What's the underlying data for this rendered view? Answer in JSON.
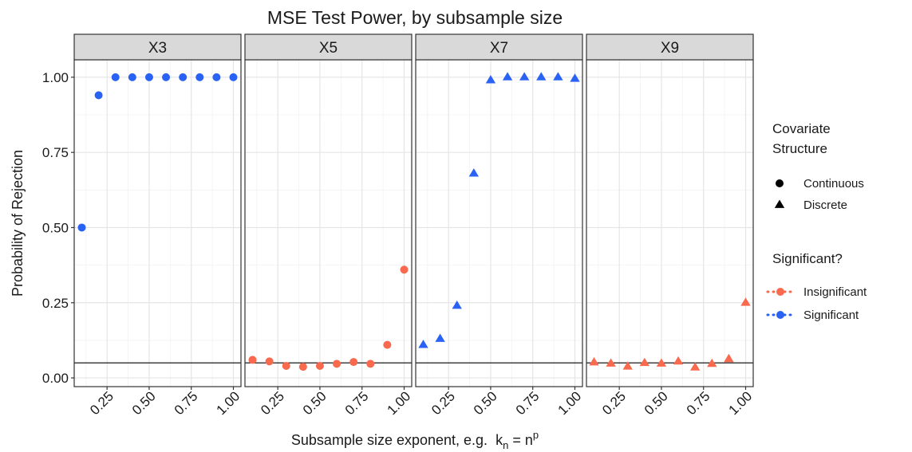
{
  "chart_data": {
    "type": "line",
    "title": "MSE Test Power, by subsample size",
    "x_label": [
      "Subsample size exponent, e.g.  k",
      "n",
      " = n",
      "p"
    ],
    "y_label": "Probability of Rejection",
    "x": [
      0.1,
      0.2,
      0.3,
      0.4,
      0.5,
      0.6,
      0.7,
      0.8,
      0.9,
      1.0
    ],
    "xlim": [
      0.055,
      1.045
    ],
    "ylim": [
      -0.029,
      1.058
    ],
    "xticks": [
      {
        "value": 0.25,
        "label": "0.25"
      },
      {
        "value": 0.5,
        "label": "0.50"
      },
      {
        "value": 0.75,
        "label": "0.75"
      },
      {
        "value": 1.0,
        "label": "1.00"
      }
    ],
    "yticks": [
      {
        "value": 0,
        "label": "0.00"
      },
      {
        "value": 0.25,
        "label": "0.25"
      },
      {
        "value": 0.5,
        "label": "0.50"
      },
      {
        "value": 0.75,
        "label": "0.75"
      },
      {
        "value": 1.0,
        "label": "1.00"
      }
    ],
    "x_minor": [
      0.125,
      0.375,
      0.625,
      0.875
    ],
    "y_minor": [
      0.125,
      0.375,
      0.625,
      0.875
    ],
    "hline": 0.05,
    "grid": true,
    "shape_legend": {
      "title": [
        "Covariate",
        "Structure"
      ],
      "items": [
        {
          "name": "Continuous",
          "shape": "circle"
        },
        {
          "name": "Discrete",
          "shape": "triangle"
        }
      ]
    },
    "color_legend": {
      "title": "Significant?",
      "items": [
        {
          "name": "Insignificant",
          "color": "#f8694e"
        },
        {
          "name": "Significant",
          "color": "#2a62f4"
        }
      ]
    },
    "facets": [
      {
        "label": "X3",
        "shape": "circle",
        "color": "#2a62f4",
        "values": [
          0.5,
          0.94,
          1.0,
          1.0,
          1.0,
          1.0,
          1.0,
          1.0,
          1.0,
          1.0
        ]
      },
      {
        "label": "X5",
        "shape": "circle",
        "color": "#f8694e",
        "values": [
          0.06,
          0.055,
          0.04,
          0.037,
          0.04,
          0.047,
          0.053,
          0.047,
          0.11,
          0.36
        ]
      },
      {
        "label": "X7",
        "shape": "triangle",
        "color": "#2a62f4",
        "values": [
          0.11,
          0.13,
          0.24,
          0.68,
          0.99,
          1.0,
          1.0,
          1.0,
          1.0,
          0.995
        ]
      },
      {
        "label": "X9",
        "shape": "triangle",
        "color": "#f8694e",
        "values": [
          0.052,
          0.048,
          0.038,
          0.05,
          0.048,
          0.055,
          0.035,
          0.047,
          0.063,
          0.25
        ]
      }
    ]
  }
}
